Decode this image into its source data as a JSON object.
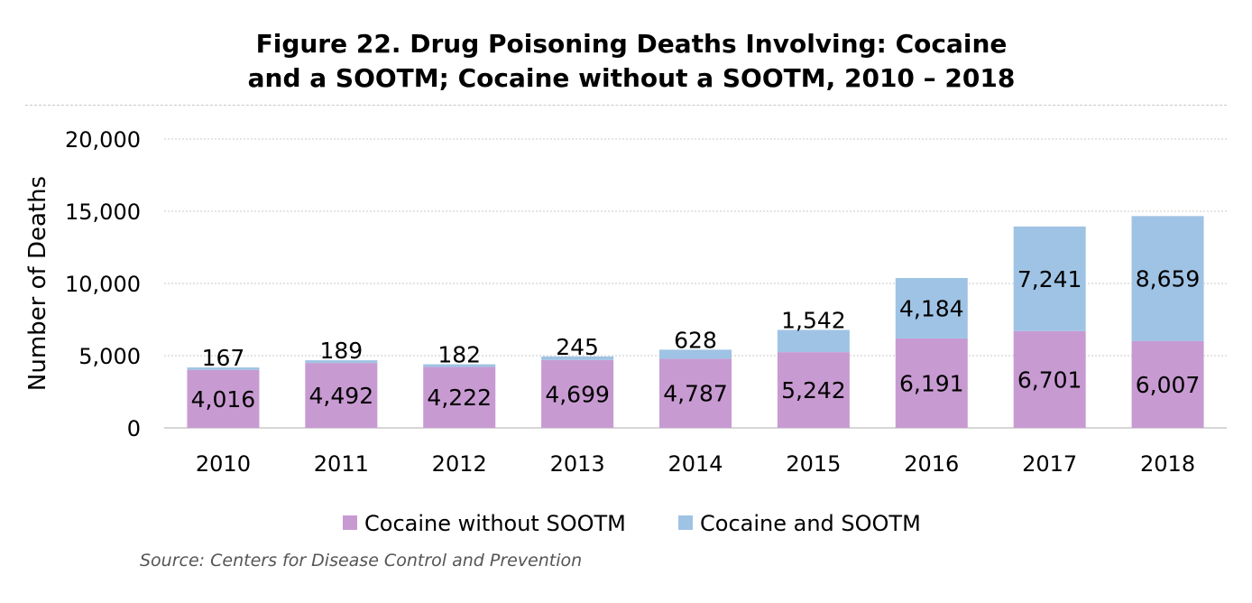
{
  "title": {
    "line1": "Figure 22. Drug Poisoning Deaths Involving: Cocaine",
    "line2": "and a SOOTM; Cocaine without a SOOTM, 2010 – 2018"
  },
  "source": "Source: Centers for Disease Control and Prevention",
  "chart_data": {
    "type": "bar",
    "stacked": true,
    "categories": [
      "2010",
      "2011",
      "2012",
      "2013",
      "2014",
      "2015",
      "2016",
      "2017",
      "2018"
    ],
    "series": [
      {
        "name": "Cocaine without SOOTM",
        "color": "#c89ad2",
        "values": [
          4016,
          4492,
          4222,
          4699,
          4787,
          5242,
          6191,
          6701,
          6007
        ],
        "labels": [
          "4,016",
          "4,492",
          "4,222",
          "4,699",
          "4,787",
          "5,242",
          "6,191",
          "6,701",
          "6,007"
        ]
      },
      {
        "name": "Cocaine and SOOTM",
        "color": "#9fc3e4",
        "values": [
          167,
          189,
          182,
          245,
          628,
          1542,
          4184,
          7241,
          8659
        ],
        "labels": [
          "167",
          "189",
          "182",
          "245",
          "628",
          "1,542",
          "4,184",
          "7,241",
          "8,659"
        ]
      }
    ],
    "ylabel": "Number of Deaths",
    "xlabel": "",
    "ylim": [
      0,
      20000
    ],
    "yticks": [
      0,
      5000,
      10000,
      15000,
      20000
    ],
    "ytick_labels": [
      "0",
      "5,000",
      "10,000",
      "15,000",
      "20,000"
    ],
    "grid": true,
    "legend": "bottom"
  }
}
